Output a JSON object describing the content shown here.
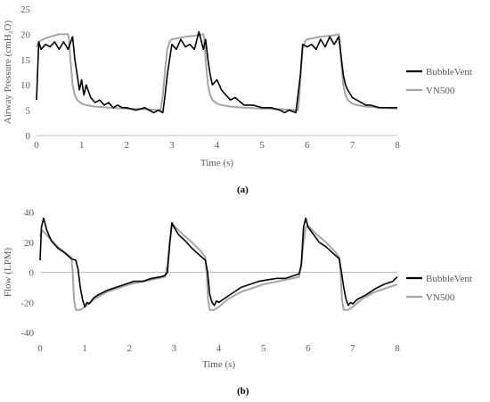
{
  "figure": {
    "panel_a_label": "(a)",
    "panel_b_label": "(b)"
  },
  "chart_data": [
    {
      "id": "a",
      "type": "line",
      "title": "",
      "xlabel": "Time (s)",
      "ylabel": "Airway Pressure (cmH₂O)",
      "xlim": [
        0,
        8
      ],
      "ylim": [
        0,
        25
      ],
      "xticks": [
        "0",
        "1",
        "2",
        "3",
        "4",
        "5",
        "6",
        "7",
        "8"
      ],
      "yticks": [
        "0",
        "5",
        "10",
        "15",
        "20",
        "25"
      ],
      "grid": false,
      "legend_position": "right",
      "series": [
        {
          "name": "BubbleVent",
          "color": "#000000",
          "x": [
            0,
            0.05,
            0.1,
            0.2,
            0.3,
            0.4,
            0.5,
            0.6,
            0.7,
            0.8,
            0.85,
            0.9,
            0.95,
            1.0,
            1.05,
            1.1,
            1.2,
            1.3,
            1.4,
            1.5,
            1.6,
            1.7,
            1.8,
            1.9,
            2.0,
            2.2,
            2.4,
            2.6,
            2.7,
            2.8,
            2.85,
            2.9,
            3.0,
            3.1,
            3.2,
            3.3,
            3.4,
            3.5,
            3.6,
            3.7,
            3.75,
            3.8,
            3.85,
            3.9,
            4.0,
            4.1,
            4.2,
            4.3,
            4.4,
            4.6,
            4.8,
            5.0,
            5.2,
            5.4,
            5.5,
            5.6,
            5.75,
            5.85,
            5.9,
            6.0,
            6.1,
            6.2,
            6.3,
            6.4,
            6.5,
            6.6,
            6.7,
            6.75,
            6.8,
            6.85,
            6.9,
            7.0,
            7.1,
            7.2,
            7.3,
            7.4,
            7.6,
            7.8,
            8.0
          ],
          "values": [
            7,
            18.5,
            17,
            18,
            17.5,
            18.5,
            17,
            18.5,
            17,
            19.5,
            15,
            12,
            9,
            11,
            8,
            10,
            7.5,
            6.5,
            7,
            6,
            6.5,
            5.5,
            6,
            5.5,
            5.5,
            5,
            5.5,
            4.5,
            5,
            4.5,
            8,
            12,
            18,
            17,
            19,
            17.5,
            18,
            17,
            20.5,
            17,
            19,
            15,
            12,
            10,
            11,
            9,
            8,
            7,
            7.5,
            6,
            6,
            5.5,
            5.5,
            5,
            4.5,
            5,
            4.5,
            12,
            18,
            17.5,
            18,
            17,
            19,
            17.5,
            19.5,
            18,
            19.5,
            16,
            12,
            10,
            9,
            7.5,
            7,
            6.5,
            6,
            6,
            5.5,
            5.5,
            5.5
          ]
        },
        {
          "name": "VN500",
          "color": "#a6a6a6",
          "x": [
            0,
            0.05,
            0.15,
            0.3,
            0.5,
            0.6,
            0.7,
            0.72,
            0.75,
            0.8,
            0.85,
            0.9,
            1.0,
            1.1,
            1.3,
            1.6,
            2.0,
            2.4,
            2.75,
            2.8,
            2.85,
            2.9,
            2.95,
            3.0,
            3.3,
            3.6,
            3.7,
            3.72,
            3.75,
            3.8,
            3.85,
            3.9,
            4.0,
            4.1,
            4.3,
            4.6,
            5.0,
            5.4,
            5.8,
            5.83,
            5.86,
            5.9,
            5.95,
            6.0,
            6.3,
            6.6,
            6.7,
            6.72,
            6.75,
            6.8,
            6.85,
            6.9,
            7.0,
            7.1,
            7.3,
            7.6,
            8.0
          ],
          "values": [
            17.5,
            18.5,
            19,
            19.5,
            20,
            20,
            20,
            19,
            15,
            10,
            8,
            7,
            6.3,
            6,
            5.7,
            5.5,
            5.3,
            5.2,
            5,
            8,
            13,
            17,
            18.5,
            19,
            19.5,
            19.8,
            20,
            19,
            15,
            10,
            8,
            7,
            6.3,
            6,
            5.7,
            5.5,
            5.3,
            5.2,
            5,
            8,
            13,
            17,
            18.5,
            19,
            19.5,
            19.8,
            20,
            19,
            15,
            10,
            8,
            7,
            6.3,
            6,
            5.7,
            5.5,
            5.3
          ]
        }
      ]
    },
    {
      "id": "b",
      "type": "line",
      "title": "",
      "xlabel": "Time (s)",
      "ylabel": "Flow (LPM)",
      "xlim": [
        0,
        8
      ],
      "ylim": [
        -40,
        40
      ],
      "xticks": [
        "0",
        "1",
        "2",
        "3",
        "4",
        "5",
        "6",
        "7",
        "8"
      ],
      "yticks": [
        "40",
        "20",
        "0",
        "-20",
        "-40"
      ],
      "grid": false,
      "legend_position": "right",
      "series": [
        {
          "name": "BubbleVent",
          "color": "#000000",
          "x": [
            0,
            0.03,
            0.08,
            0.15,
            0.25,
            0.4,
            0.55,
            0.7,
            0.8,
            0.85,
            0.9,
            0.95,
            1.0,
            1.05,
            1.1,
            1.2,
            1.3,
            1.5,
            1.7,
            1.9,
            2.1,
            2.3,
            2.5,
            2.7,
            2.8,
            2.85,
            2.9,
            2.95,
            3.0,
            3.1,
            3.25,
            3.4,
            3.55,
            3.7,
            3.75,
            3.8,
            3.85,
            3.9,
            3.95,
            4.0,
            4.1,
            4.3,
            4.5,
            4.7,
            4.9,
            5.1,
            5.3,
            5.5,
            5.7,
            5.8,
            5.85,
            5.9,
            5.95,
            6.0,
            6.1,
            6.25,
            6.4,
            6.55,
            6.7,
            6.75,
            6.8,
            6.85,
            6.9,
            6.95,
            7.0,
            7.1,
            7.3,
            7.5,
            7.7,
            7.9,
            8.0
          ],
          "values": [
            8,
            30,
            36,
            28,
            21,
            16,
            13,
            9,
            8,
            2,
            -10,
            -18,
            -23,
            -20,
            -21,
            -17,
            -15,
            -12,
            -10,
            -8,
            -6,
            -6,
            -4,
            -3,
            -2,
            0,
            18,
            33,
            30,
            25,
            21,
            16,
            12,
            8,
            0,
            -15,
            -20,
            -22,
            -19,
            -20,
            -18,
            -14,
            -10,
            -8,
            -6,
            -5,
            -4,
            -4,
            -2,
            -1,
            5,
            30,
            36,
            30,
            26,
            20,
            17,
            13,
            9,
            0,
            -10,
            -18,
            -22,
            -20,
            -21,
            -18,
            -15,
            -11,
            -8,
            -6,
            -3
          ]
        },
        {
          "name": "VN500",
          "color": "#a6a6a6",
          "x": [
            0,
            0.05,
            0.2,
            0.4,
            0.6,
            0.7,
            0.73,
            0.76,
            0.8,
            0.9,
            1.0,
            1.2,
            1.5,
            2.0,
            2.5,
            2.8,
            2.85,
            2.9,
            2.95,
            3.0,
            3.2,
            3.4,
            3.6,
            3.7,
            3.73,
            3.76,
            3.8,
            3.9,
            4.0,
            4.2,
            4.5,
            5.0,
            5.5,
            5.8,
            5.85,
            5.9,
            5.95,
            6.0,
            6.2,
            6.4,
            6.6,
            6.7,
            6.73,
            6.76,
            6.8,
            6.9,
            7.0,
            7.2,
            7.5,
            8.0
          ],
          "values": [
            24,
            28,
            23,
            17,
            12,
            10,
            0,
            -18,
            -25,
            -25,
            -23,
            -18,
            -13,
            -8,
            -5,
            -3,
            5,
            20,
            30,
            31,
            25,
            20,
            14,
            10,
            0,
            -18,
            -25,
            -25,
            -23,
            -18,
            -13,
            -8,
            -5,
            -3,
            5,
            20,
            30,
            31,
            25,
            20,
            14,
            10,
            0,
            -18,
            -25,
            -25,
            -23,
            -18,
            -13,
            -8
          ]
        }
      ]
    }
  ]
}
